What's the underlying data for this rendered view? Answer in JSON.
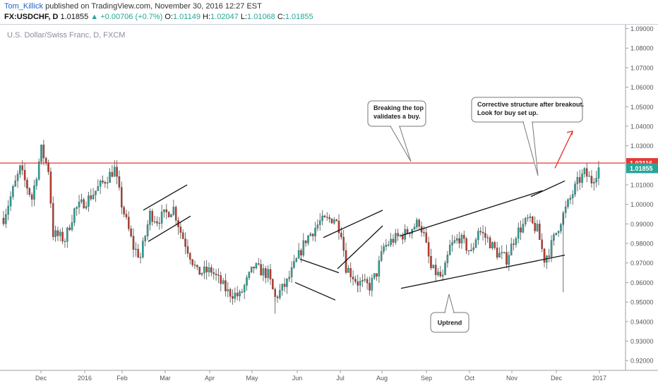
{
  "header": {
    "author": "Tom_Killick",
    "published": "published on TradingView.com, November 30, 2016 12:27 EST",
    "symbol": "FX:USDCHF, D",
    "last": "1.01855",
    "change_arrow": "▲",
    "change": "+0.00706 (+0.7%)",
    "o_label": "O:",
    "o_value": "1.01149",
    "h_label": "H:",
    "h_value": "1.02047",
    "l_label": "L:",
    "l_value": "1.01068",
    "c_label": "C:",
    "c_value": "1.01855"
  },
  "chart_subtitle": "U.S. Dollar/Swiss Franc, D, FXCM",
  "chart_data": {
    "type": "candlestick",
    "title": "",
    "ylim": [
      0.915,
      1.092
    ],
    "y_ticks": [
      "1.09000",
      "1.08000",
      "1.07000",
      "1.06000",
      "1.05000",
      "1.04000",
      "1.03000",
      "1.02000",
      "1.01000",
      "1.00000",
      "0.99000",
      "0.98000",
      "0.97000",
      "0.96000",
      "0.95000",
      "0.94000",
      "0.93000",
      "0.92000"
    ],
    "x_ticks": [
      "Dec",
      "2016",
      "Feb",
      "Mar",
      "Apr",
      "May",
      "Jun",
      "Jul",
      "Aug",
      "Sep",
      "Oct",
      "Nov",
      "Dec",
      "2017"
    ],
    "resistance_level": 1.02116,
    "resistance_label": "1.02116",
    "last_price_label": "1.01855",
    "series": [
      {
        "segments": [
          [
            0,
            0.993
          ],
          [
            7,
            1.018
          ],
          [
            12,
            1.003
          ],
          [
            16,
            1.028
          ],
          [
            19,
            1.018
          ],
          [
            21,
            0.985
          ],
          [
            26,
            0.982
          ],
          [
            30,
            0.997
          ],
          [
            36,
            1.003
          ],
          [
            42,
            1.011
          ],
          [
            47,
            1.018
          ],
          [
            50,
            1.0
          ],
          [
            55,
            0.978
          ],
          [
            58,
            0.973
          ],
          [
            62,
            0.995
          ],
          [
            65,
            0.992
          ],
          [
            72,
            0.998
          ],
          [
            75,
            0.986
          ],
          [
            82,
            0.965
          ],
          [
            88,
            0.966
          ],
          [
            95,
            0.955
          ],
          [
            100,
            0.953
          ],
          [
            106,
            0.968
          ],
          [
            112,
            0.964
          ],
          [
            115,
            0.952
          ],
          [
            120,
            0.96
          ],
          [
            128,
            0.982
          ],
          [
            134,
            0.991
          ],
          [
            140,
            0.993
          ],
          [
            143,
            0.986
          ],
          [
            145,
            0.968
          ],
          [
            150,
            0.96
          ],
          [
            155,
            0.958
          ],
          [
            158,
            0.965
          ],
          [
            161,
            0.978
          ],
          [
            165,
            0.982
          ],
          [
            170,
            0.985
          ],
          [
            176,
            0.991
          ],
          [
            178,
            0.984
          ],
          [
            181,
            0.967
          ],
          [
            186,
            0.962
          ],
          [
            189,
            0.978
          ],
          [
            193,
            0.983
          ],
          [
            198,
            0.975
          ],
          [
            201,
            0.987
          ],
          [
            205,
            0.982
          ],
          [
            209,
            0.975
          ],
          [
            213,
            0.972
          ],
          [
            217,
            0.985
          ],
          [
            222,
            0.992
          ],
          [
            226,
            0.987
          ],
          [
            229,
            0.972
          ],
          [
            231,
            0.976
          ],
          [
            236,
            0.992
          ],
          [
            240,
            1.003
          ],
          [
            243,
            1.011
          ],
          [
            246,
            1.016
          ],
          [
            249,
            1.012
          ],
          [
            252,
            1.0185
          ]
        ]
      }
    ],
    "annotations": [
      {
        "text": [
          "Breaking the top",
          "validates a buy."
        ]
      },
      {
        "text": [
          "Corrective structure after breakout.",
          "Look for buy set up."
        ]
      },
      {
        "text": [
          "Uptrend"
        ]
      }
    ]
  }
}
